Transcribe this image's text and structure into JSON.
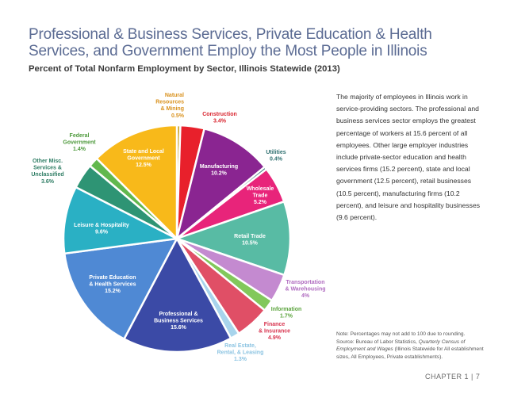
{
  "title": "Professional & Business Services, Private Education & Health Services, and Government Employ the Most People in Illinois",
  "subtitle": "Percent of Total Nonfarm Employment by Sector, Illinois Statewide (2013)",
  "body_text": "The majority of employees in Illinois work in service-providing sectors. The professional and business services sector employs the greatest percentage of workers at 15.6 percent of all employees. Other large employer industries include private-sector education and health services firms (15.2 percent), state and local government (12.5 percent), retail businesses (10.5 percent), manufacturing firms (10.2 percent), and leisure and hospitality businesses (9.6 percent).",
  "note": {
    "line1": "Note: Percentages may not add to 100 due to rounding.",
    "source_prefix": "Source: Bureau of Labor Statistics,",
    "source_title": "Quarterly Census of Employment and Wages",
    "source_suffix": "(Illinois Statewide for All establishment sizes, All Employees, Private establishments)."
  },
  "footer": "CHAPTER 1  |  7",
  "chart_data": {
    "type": "pie",
    "title": "Percent of Total Nonfarm Employment by Sector, Illinois Statewide (2013)",
    "unit": "%",
    "slices": [
      {
        "name": "Natural Resources & Mining",
        "value": 0.5,
        "label_lines": [
          "Natural",
          "Resources",
          "& Mining"
        ],
        "value_label": "0.5%",
        "color": "#c9a227",
        "label_color": "#d9921f"
      },
      {
        "name": "Construction",
        "value": 3.4,
        "label_lines": [
          "Construction"
        ],
        "value_label": "3.4%",
        "color": "#e8202b",
        "label_color": "#d9252f"
      },
      {
        "name": "Manufacturing",
        "value": 10.2,
        "label_lines": [
          "Manufacturing"
        ],
        "value_label": "10.2%",
        "color": "#8a2591",
        "label_color": "#ffffff"
      },
      {
        "name": "Utilities",
        "value": 0.4,
        "label_lines": [
          "Utilities"
        ],
        "value_label": "0.4%",
        "color": "#2a6d70",
        "label_color": "#2d6f6f"
      },
      {
        "name": "Wholesale Trade",
        "value": 5.2,
        "label_lines": [
          "Wholesale",
          "Trade"
        ],
        "value_label": "5.2%",
        "color": "#e8247a",
        "label_color": "#ffffff"
      },
      {
        "name": "Retail Trade",
        "value": 10.5,
        "label_lines": [
          "Retail Trade"
        ],
        "value_label": "10.5%",
        "color": "#58bba4",
        "label_color": "#ffffff"
      },
      {
        "name": "Transportation & Warehousing",
        "value": 4.0,
        "label_lines": [
          "Transportation",
          "& Warehousing"
        ],
        "value_label": "4%",
        "color": "#c48ad0",
        "label_color": "#b06cc0"
      },
      {
        "name": "Information",
        "value": 1.7,
        "label_lines": [
          "Information"
        ],
        "value_label": "1.7%",
        "color": "#82c85b",
        "label_color": "#5aa33c"
      },
      {
        "name": "Finance & Insurance",
        "value": 4.9,
        "label_lines": [
          "Finance",
          "& Insurance"
        ],
        "value_label": "4.9%",
        "color": "#e04f66",
        "label_color": "#d8344f"
      },
      {
        "name": "Real Estate, Rental, & Leasing",
        "value": 1.3,
        "label_lines": [
          "Real Estate,",
          "Rental, & Leasing"
        ],
        "value_label": "1.3%",
        "color": "#a8d4ec",
        "label_color": "#8cc4e2"
      },
      {
        "name": "Professional & Business Services",
        "value": 15.6,
        "label_lines": [
          "Professional &",
          "Business Services"
        ],
        "value_label": "15.6%",
        "color": "#3b4aa6",
        "label_color": "#ffffff"
      },
      {
        "name": "Private Education & Health Services",
        "value": 15.2,
        "label_lines": [
          "Private Education",
          "& Health Services"
        ],
        "value_label": "15.2%",
        "color": "#4f89d4",
        "label_color": "#ffffff"
      },
      {
        "name": "Leisure & Hospitality",
        "value": 9.6,
        "label_lines": [
          "Leisure & Hospitality"
        ],
        "value_label": "9.6%",
        "color": "#2ab0c4",
        "label_color": "#ffffff"
      },
      {
        "name": "Other Misc. Services & Unclassified",
        "value": 3.6,
        "label_lines": [
          "Other Misc.",
          "Services &",
          "Unclassified"
        ],
        "value_label": "3.6%",
        "color": "#2e9474",
        "label_color": "#2e7d64"
      },
      {
        "name": "Federal Government",
        "value": 1.4,
        "label_lines": [
          "Federal",
          "Government"
        ],
        "value_label": "1.4%",
        "color": "#61b84e",
        "label_color": "#4e9a3c"
      },
      {
        "name": "State and Local Government",
        "value": 12.5,
        "label_lines": [
          "State and Local",
          "Government"
        ],
        "value_label": "12.5%",
        "color": "#f8b91a",
        "label_color": "#ffffff"
      }
    ]
  }
}
